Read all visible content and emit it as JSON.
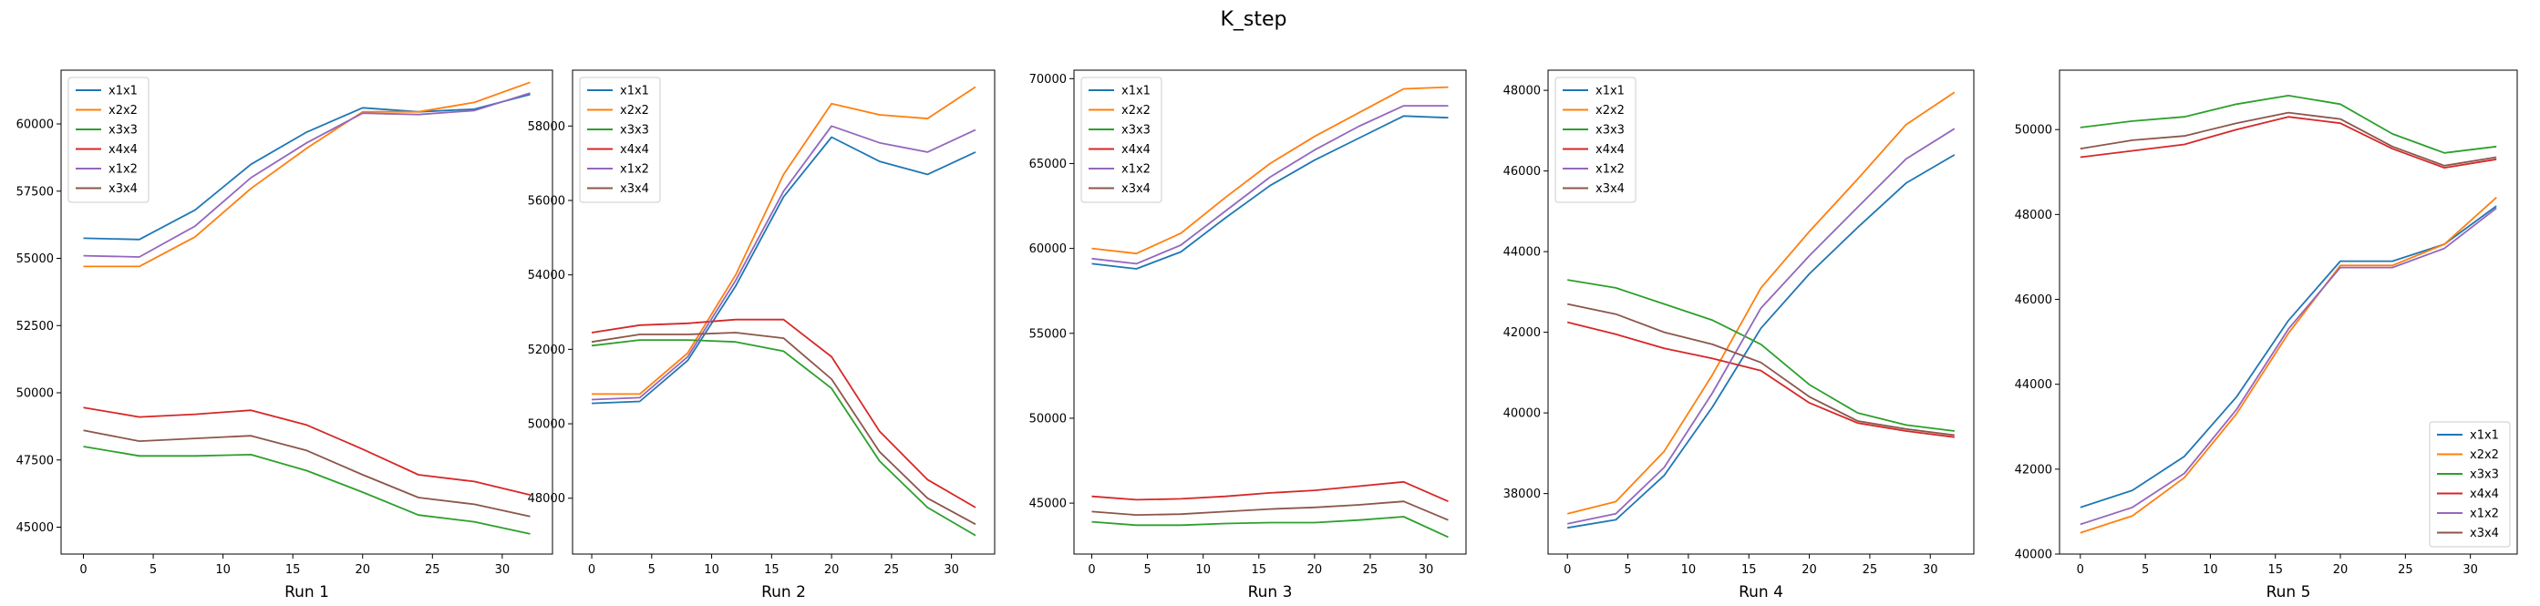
{
  "figure_title": "K_step",
  "colors": {
    "x1x1": "#1f77b4",
    "x2x2": "#ff7f0e",
    "x3x3": "#2ca02c",
    "x4x4": "#d62728",
    "x1x2": "#9467bd",
    "x3x4": "#8c564b"
  },
  "chart_data": [
    {
      "type": "line",
      "title": "",
      "xlabel": "Run 1",
      "ylabel": "",
      "x": [
        0,
        4,
        8,
        12,
        16,
        20,
        24,
        28,
        32
      ],
      "xticks": [
        0,
        5,
        10,
        15,
        20,
        25,
        30
      ],
      "xlim": [
        -1.6,
        33.6
      ],
      "ylim": [
        44000,
        62000
      ],
      "yticks": [
        45000,
        47500,
        50000,
        52500,
        55000,
        57500,
        60000
      ],
      "ytick_labels": [
        "45000",
        "47500",
        "50000",
        "52500",
        "55000",
        "57500",
        "60000"
      ],
      "legend": "top-left",
      "series": [
        {
          "name": "x1x1",
          "values": [
            55750,
            55700,
            56800,
            58500,
            59700,
            60600,
            60450,
            60550,
            61100
          ]
        },
        {
          "name": "x2x2",
          "values": [
            54700,
            54700,
            55800,
            57600,
            59100,
            60450,
            60450,
            60800,
            61550
          ]
        },
        {
          "name": "x3x3",
          "values": [
            48000,
            47650,
            47650,
            47700,
            47100,
            46300,
            45450,
            45200,
            44750
          ]
        },
        {
          "name": "x4x4",
          "values": [
            49450,
            49100,
            49200,
            49350,
            48800,
            47900,
            46950,
            46700,
            46200
          ]
        },
        {
          "name": "x1x2",
          "values": [
            55100,
            55050,
            56200,
            58000,
            59300,
            60400,
            60350,
            60500,
            61150
          ]
        },
        {
          "name": "x3x4",
          "values": [
            48600,
            48200,
            48300,
            48400,
            47850,
            46950,
            46100,
            45850,
            45400
          ]
        }
      ]
    },
    {
      "type": "line",
      "title": "",
      "xlabel": "Run 2",
      "ylabel": "",
      "x": [
        0,
        4,
        8,
        12,
        16,
        20,
        24,
        28,
        32
      ],
      "xticks": [
        0,
        5,
        10,
        15,
        20,
        25,
        30
      ],
      "xlim": [
        -1.6,
        33.6
      ],
      "ylim": [
        46500,
        59500
      ],
      "yticks": [
        48000,
        50000,
        52000,
        54000,
        56000,
        58000
      ],
      "ytick_labels": [
        "48000",
        "50000",
        "52000",
        "54000",
        "56000",
        "58000"
      ],
      "legend": "top-left",
      "series": [
        {
          "name": "x1x1",
          "values": [
            50550,
            50600,
            51700,
            53700,
            56100,
            57700,
            57050,
            56700,
            57300
          ]
        },
        {
          "name": "x2x2",
          "values": [
            50800,
            50800,
            51900,
            54000,
            56700,
            58600,
            58300,
            58200,
            59050
          ]
        },
        {
          "name": "x3x3",
          "values": [
            52100,
            52250,
            52250,
            52200,
            51950,
            50950,
            49000,
            47750,
            47000
          ]
        },
        {
          "name": "x4x4",
          "values": [
            52450,
            52650,
            52700,
            52800,
            52800,
            51800,
            49800,
            48500,
            47750
          ]
        },
        {
          "name": "x1x2",
          "values": [
            50650,
            50700,
            51800,
            53850,
            56250,
            58000,
            57550,
            57300,
            57900
          ]
        },
        {
          "name": "x3x4",
          "values": [
            52200,
            52400,
            52400,
            52450,
            52300,
            51200,
            49250,
            48000,
            47300
          ]
        }
      ]
    },
    {
      "type": "line",
      "title": "",
      "xlabel": "Run 3",
      "ylabel": "",
      "x": [
        0,
        4,
        8,
        12,
        16,
        20,
        24,
        28,
        32
      ],
      "xticks": [
        0,
        5,
        10,
        15,
        20,
        25,
        30
      ],
      "xlim": [
        -1.6,
        33.6
      ],
      "ylim": [
        42000,
        70500
      ],
      "yticks": [
        45000,
        50000,
        55000,
        60000,
        65000,
        70000
      ],
      "ytick_labels": [
        "45000",
        "50000",
        "55000",
        "60000",
        "65000",
        "70000"
      ],
      "legend": "top-left",
      "series": [
        {
          "name": "x1x1",
          "values": [
            59100,
            58800,
            59800,
            61800,
            63700,
            65200,
            66500,
            67800,
            67700
          ]
        },
        {
          "name": "x2x2",
          "values": [
            60000,
            59700,
            60900,
            63000,
            65000,
            66600,
            68000,
            69400,
            69500
          ]
        },
        {
          "name": "x3x3",
          "values": [
            43900,
            43700,
            43700,
            43800,
            43850,
            43850,
            44000,
            44200,
            43000
          ]
        },
        {
          "name": "x4x4",
          "values": [
            45400,
            45200,
            45250,
            45400,
            45600,
            45750,
            46000,
            46250,
            45100
          ]
        },
        {
          "name": "x1x2",
          "values": [
            59400,
            59100,
            60200,
            62200,
            64200,
            65800,
            67200,
            68400,
            68400
          ]
        },
        {
          "name": "x3x4",
          "values": [
            44500,
            44300,
            44350,
            44500,
            44650,
            44750,
            44900,
            45100,
            44000
          ]
        }
      ]
    },
    {
      "type": "line",
      "title": "",
      "xlabel": "Run 4",
      "ylabel": "",
      "x": [
        0,
        4,
        8,
        12,
        16,
        20,
        24,
        28,
        32
      ],
      "xticks": [
        0,
        5,
        10,
        15,
        20,
        25,
        30
      ],
      "xlim": [
        -1.6,
        33.6
      ],
      "ylim": [
        36500,
        48500
      ],
      "yticks": [
        38000,
        40000,
        42000,
        44000,
        46000,
        48000
      ],
      "ytick_labels": [
        "38000",
        "40000",
        "42000",
        "44000",
        "46000",
        "48000"
      ],
      "legend": "top-left",
      "series": [
        {
          "name": "x1x1",
          "values": [
            37150,
            37350,
            38450,
            40150,
            42100,
            43450,
            44600,
            45700,
            46400
          ]
        },
        {
          "name": "x2x2",
          "values": [
            37500,
            37800,
            39050,
            40950,
            43100,
            44500,
            45800,
            47150,
            47950
          ]
        },
        {
          "name": "x3x3",
          "values": [
            43300,
            43100,
            42700,
            42300,
            41700,
            40700,
            40000,
            39700,
            39550
          ]
        },
        {
          "name": "x4x4",
          "values": [
            42250,
            41950,
            41600,
            41350,
            41050,
            40250,
            39750,
            39550,
            39400
          ]
        },
        {
          "name": "x1x2",
          "values": [
            37250,
            37500,
            38650,
            40500,
            42600,
            43900,
            45100,
            46300,
            47050
          ]
        },
        {
          "name": "x3x4",
          "values": [
            42700,
            42450,
            42000,
            41700,
            41250,
            40400,
            39800,
            39600,
            39450
          ]
        }
      ]
    },
    {
      "type": "line",
      "title": "",
      "xlabel": "Run 5",
      "ylabel": "",
      "x": [
        0,
        4,
        8,
        12,
        16,
        20,
        24,
        28,
        32
      ],
      "xticks": [
        0,
        5,
        10,
        15,
        20,
        25,
        30
      ],
      "xlim": [
        -1.6,
        33.6
      ],
      "ylim": [
        40000,
        51400
      ],
      "yticks": [
        40000,
        42000,
        44000,
        46000,
        48000,
        50000
      ],
      "ytick_labels": [
        "40000",
        "42000",
        "44000",
        "46000",
        "48000",
        "50000"
      ],
      "legend": "bottom-right",
      "series": [
        {
          "name": "x1x1",
          "values": [
            41100,
            41500,
            42300,
            43700,
            45500,
            46900,
            46900,
            47300,
            48200
          ]
        },
        {
          "name": "x2x2",
          "values": [
            40500,
            40900,
            41800,
            43300,
            45200,
            46800,
            46800,
            47300,
            48400
          ]
        },
        {
          "name": "x3x3",
          "values": [
            50050,
            50200,
            50300,
            50600,
            50800,
            50600,
            49900,
            49450,
            49600
          ]
        },
        {
          "name": "x4x4",
          "values": [
            49350,
            49500,
            49650,
            50000,
            50300,
            50150,
            49550,
            49100,
            49300
          ]
        },
        {
          "name": "x1x2",
          "values": [
            40700,
            41100,
            41900,
            43400,
            45300,
            46750,
            46750,
            47200,
            48150
          ]
        },
        {
          "name": "x3x4",
          "values": [
            49550,
            49750,
            49850,
            50150,
            50400,
            50250,
            49600,
            49150,
            49350
          ]
        }
      ]
    }
  ]
}
